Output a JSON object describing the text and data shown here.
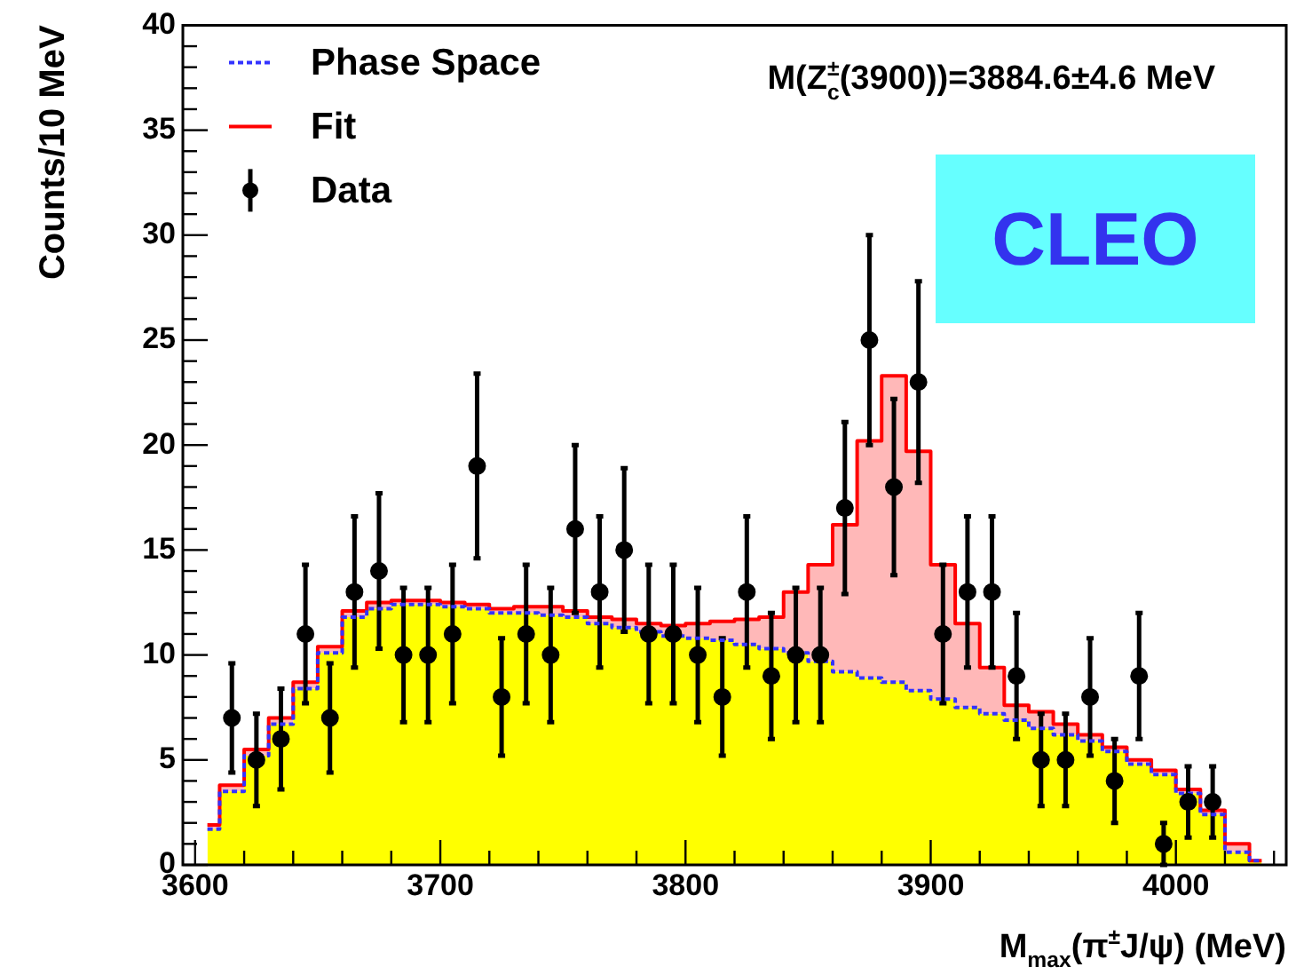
{
  "chart_data": {
    "type": "step",
    "xlabel": "M$_{max}$(π$^{±}$J/ψ) (MeV)",
    "ylabel": "Counts/10 MeV",
    "annotations": [
      "M(Z$_{c}$$^{±}$(3900))=3884.6±4.6 MeV",
      "CLEO"
    ],
    "legend": "top left",
    "grid": false,
    "xlim": [
      3595,
      4045
    ],
    "ylim": [
      0,
      40
    ],
    "xticks": [
      3600,
      {
        "value": 3620,
        "label": null
      },
      {
        "value": 3640,
        "label": null
      },
      {
        "value": 3660,
        "label": null
      },
      {
        "value": 3680,
        "label": null
      },
      3700,
      {
        "value": 3720,
        "label": null
      },
      {
        "value": 3740,
        "label": null
      },
      {
        "value": 3760,
        "label": null
      },
      {
        "value": 3780,
        "label": null
      },
      3800,
      {
        "value": 3820,
        "label": null
      },
      {
        "value": 3840,
        "label": null
      },
      {
        "value": 3860,
        "label": null
      },
      {
        "value": 3880,
        "label": null
      },
      3900,
      {
        "value": 3920,
        "label": null
      },
      {
        "value": 3940,
        "label": null
      },
      {
        "value": 3960,
        "label": null
      },
      {
        "value": 3980,
        "label": null
      },
      4000,
      {
        "value": 4020,
        "label": null
      },
      {
        "value": 4040,
        "label": null
      }
    ],
    "yticks": [
      0,
      {
        "value": 1,
        "label": null
      },
      {
        "value": 2,
        "label": null
      },
      {
        "value": 3,
        "label": null
      },
      {
        "value": 4,
        "label": null
      },
      5,
      {
        "value": 6,
        "label": null
      },
      {
        "value": 7,
        "label": null
      },
      {
        "value": 8,
        "label": null
      },
      {
        "value": 9,
        "label": null
      },
      10,
      {
        "value": 11,
        "label": null
      },
      {
        "value": 12,
        "label": null
      },
      {
        "value": 13,
        "label": null
      },
      {
        "value": 14,
        "label": null
      },
      15,
      {
        "value": 16,
        "label": null
      },
      {
        "value": 17,
        "label": null
      },
      {
        "value": 18,
        "label": null
      },
      {
        "value": 19,
        "label": null
      },
      20,
      {
        "value": 21,
        "label": null
      },
      {
        "value": 22,
        "label": null
      },
      {
        "value": 23,
        "label": null
      },
      {
        "value": 24,
        "label": null
      },
      25,
      {
        "value": 26,
        "label": null
      },
      {
        "value": 27,
        "label": null
      },
      {
        "value": 28,
        "label": null
      },
      {
        "value": 29,
        "label": null
      },
      30,
      {
        "value": 31,
        "label": null
      },
      {
        "value": 32,
        "label": null
      },
      {
        "value": 33,
        "label": null
      },
      {
        "value": 34,
        "label": null
      },
      35,
      {
        "value": 36,
        "label": null
      },
      {
        "value": 37,
        "label": null
      },
      {
        "value": 38,
        "label": null
      },
      {
        "value": 39,
        "label": null
      },
      40
    ],
    "series": [
      {
        "type": "area",
        "color": "#ffff00",
        "x": [
          3605,
          3615,
          3625,
          3635,
          3645,
          3655,
          3665,
          3675,
          3685,
          3695,
          3705,
          3715,
          3725,
          3735,
          3745,
          3755,
          3765,
          3775,
          3785,
          3795,
          3805,
          3815,
          3825,
          3835,
          3845,
          3855,
          3865,
          3875,
          3885,
          3895,
          3905,
          3915,
          3925,
          3935,
          3945,
          3955,
          3965,
          3975,
          3985,
          3995,
          4005,
          4015,
          4025,
          4035
        ],
        "values": [
          1.7,
          3.5,
          5.2,
          6.7,
          8.4,
          10.1,
          11.8,
          12.2,
          12.4,
          12.4,
          12.3,
          12.2,
          12.0,
          12.0,
          11.9,
          11.8,
          11.5,
          11.3,
          11.1,
          10.9,
          10.8,
          10.7,
          10.5,
          10.3,
          10.1,
          9.7,
          9.2,
          8.9,
          8.7,
          8.3,
          7.9,
          7.5,
          7.2,
          6.9,
          6.5,
          6.2,
          5.9,
          5.4,
          4.8,
          4.3,
          3.4,
          2.4,
          0.6,
          0.2
        ]
      },
      {
        "name": "Phase Space",
        "color": "#3333ff",
        "line_style": "dotted",
        "x": [
          3605,
          3615,
          3625,
          3635,
          3645,
          3655,
          3665,
          3675,
          3685,
          3695,
          3705,
          3715,
          3725,
          3735,
          3745,
          3755,
          3765,
          3775,
          3785,
          3795,
          3805,
          3815,
          3825,
          3835,
          3845,
          3855,
          3865,
          3875,
          3885,
          3895,
          3905,
          3915,
          3925,
          3935,
          3945,
          3955,
          3965,
          3975,
          3985,
          3995,
          4005,
          4015,
          4025,
          4035
        ],
        "values": [
          1.7,
          3.5,
          5.2,
          6.7,
          8.4,
          10.1,
          11.8,
          12.2,
          12.4,
          12.4,
          12.3,
          12.2,
          12.0,
          12.0,
          11.9,
          11.8,
          11.5,
          11.3,
          11.1,
          10.9,
          10.8,
          10.7,
          10.5,
          10.3,
          10.1,
          9.7,
          9.2,
          8.9,
          8.7,
          8.3,
          7.9,
          7.5,
          7.2,
          6.9,
          6.5,
          6.2,
          5.9,
          5.4,
          4.8,
          4.3,
          3.4,
          2.4,
          0.6,
          0.2
        ]
      },
      {
        "name": "Fit",
        "color": "#ff0000",
        "line_style": "solid",
        "x": [
          3605,
          3615,
          3625,
          3635,
          3645,
          3655,
          3665,
          3675,
          3685,
          3695,
          3705,
          3715,
          3725,
          3735,
          3745,
          3755,
          3765,
          3775,
          3785,
          3795,
          3805,
          3815,
          3825,
          3835,
          3845,
          3855,
          3865,
          3875,
          3885,
          3895,
          3905,
          3915,
          3925,
          3935,
          3945,
          3955,
          3965,
          3975,
          3985,
          3995,
          4005,
          4015,
          4025,
          4035
        ],
        "values": [
          1.9,
          3.8,
          5.5,
          7.0,
          8.7,
          10.4,
          12.1,
          12.5,
          12.6,
          12.6,
          12.5,
          12.4,
          12.2,
          12.3,
          12.3,
          12.1,
          11.8,
          11.7,
          11.5,
          11.4,
          11.5,
          11.6,
          11.7,
          11.8,
          13.0,
          14.3,
          16.2,
          20.2,
          23.3,
          19.7,
          14.3,
          11.5,
          9.4,
          7.6,
          7.3,
          6.7,
          6.2,
          5.6,
          5.0,
          4.5,
          3.6,
          2.6,
          1.0,
          0.2
        ]
      },
      {
        "type": "scatter",
        "name": "Data",
        "color": "#000000",
        "marker": "circle",
        "x": [
          3615,
          3625,
          3635,
          3645,
          3655,
          3665,
          3675,
          3685,
          3695,
          3705,
          3715,
          3725,
          3735,
          3745,
          3755,
          3765,
          3775,
          3785,
          3795,
          3805,
          3815,
          3825,
          3835,
          3845,
          3855,
          3865,
          3875,
          3885,
          3895,
          3905,
          3915,
          3925,
          3935,
          3945,
          3955,
          3965,
          3975,
          3985,
          3995,
          4005,
          4015
        ],
        "values": [
          7,
          5,
          6,
          11,
          7,
          13,
          14,
          10,
          10,
          11,
          19,
          8,
          11,
          10,
          16,
          13,
          15,
          11,
          11,
          10,
          8,
          13,
          9,
          10,
          10,
          17,
          25,
          18,
          23,
          11,
          13,
          13,
          9,
          5,
          5,
          8,
          4,
          9,
          1,
          3,
          3
        ],
        "errors": [
          2.6,
          2.2,
          2.4,
          3.3,
          2.6,
          3.6,
          3.7,
          3.2,
          3.2,
          3.3,
          4.4,
          2.8,
          3.3,
          3.2,
          4,
          3.6,
          3.9,
          3.3,
          3.3,
          3.2,
          2.8,
          3.6,
          3,
          3.2,
          3.2,
          4.1,
          5,
          4.2,
          4.8,
          3.3,
          3.6,
          3.6,
          3,
          2.2,
          2.2,
          2.8,
          2,
          3,
          1,
          1.7,
          1.7
        ]
      }
    ]
  }
}
